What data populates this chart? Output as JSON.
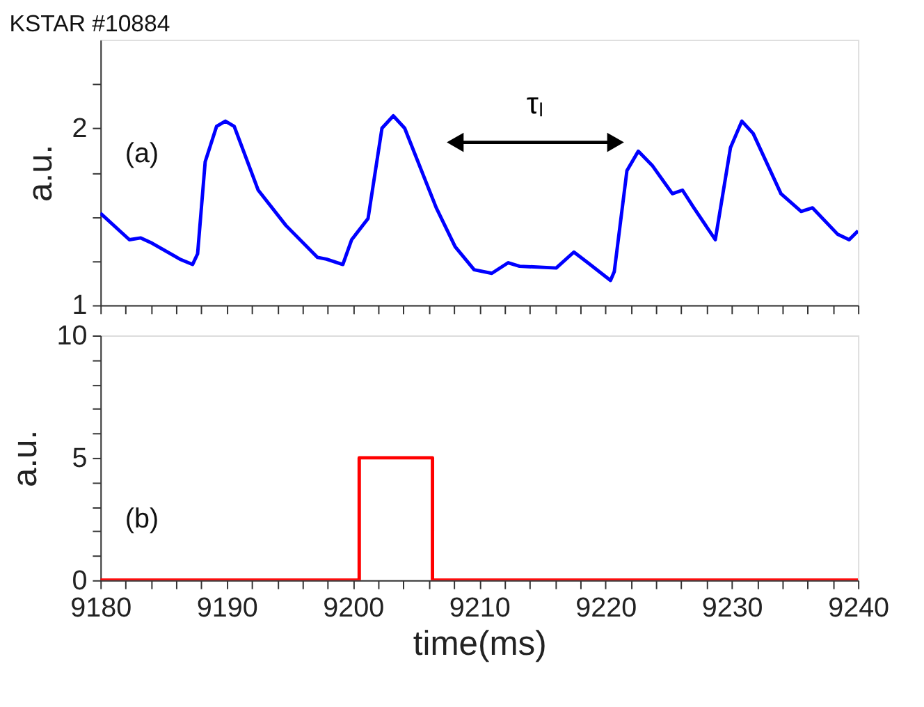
{
  "chart_data": [
    {
      "type": "line",
      "title": "KSTAR #10884",
      "ylabel": "a.u.",
      "xlim": [
        9180,
        9240
      ],
      "xticks": [
        9180,
        {
          "value": 9182,
          "label": null
        },
        {
          "value": 9184,
          "label": null
        },
        {
          "value": 9186,
          "label": null
        },
        {
          "value": 9188,
          "label": null
        },
        9190,
        {
          "value": 9192,
          "label": null
        },
        {
          "value": 9194,
          "label": null
        },
        {
          "value": 9196,
          "label": null
        },
        {
          "value": 9198,
          "label": null
        },
        9200,
        {
          "value": 9202,
          "label": null
        },
        {
          "value": 9204,
          "label": null
        },
        {
          "value": 9206,
          "label": null
        },
        {
          "value": 9208,
          "label": null
        },
        9210,
        {
          "value": 9212,
          "label": null
        },
        {
          "value": 9214,
          "label": null
        },
        {
          "value": 9216,
          "label": null
        },
        {
          "value": 9218,
          "label": null
        },
        9220,
        {
          "value": 9222,
          "label": null
        },
        {
          "value": 9224,
          "label": null
        },
        {
          "value": 9226,
          "label": null
        },
        {
          "value": 9228,
          "label": null
        },
        9230,
        {
          "value": 9232,
          "label": null
        },
        {
          "value": 9234,
          "label": null
        },
        {
          "value": 9236,
          "label": null
        },
        {
          "value": 9238,
          "label": null
        },
        9240
      ],
      "ylim": [
        1,
        2.5
      ],
      "yticks": [
        1,
        {
          "value": 1.25,
          "label": null
        },
        {
          "value": 1.5,
          "label": null
        },
        {
          "value": 1.75,
          "label": null
        },
        2,
        {
          "value": 2.25,
          "label": null
        }
      ],
      "tick_labels": "y",
      "grid": false,
      "series": [
        {
          "color": "#0000ff",
          "x": [
            9180,
            9182.3,
            9183.2,
            9184.1,
            9186.3,
            9187.3,
            9187.7,
            9188.3,
            9189.2,
            9189.9,
            9190.6,
            9192.5,
            9194.7,
            9197.2,
            9197.9,
            9199.2,
            9199.9,
            9201.2,
            9202.3,
            9203.2,
            9204.1,
            9206.6,
            9208.1,
            9209.6,
            9211.0,
            9212.3,
            9213.2,
            9216.1,
            9217.5,
            9218.6,
            9220.4,
            9220.7,
            9221.7,
            9222.6,
            9223.7,
            9225.3,
            9226.1,
            9227.0,
            9228.7,
            9229.9,
            9230.8,
            9231.7,
            9233.9,
            9235.5,
            9236.4,
            9238.4,
            9239.3,
            9240
          ],
          "values": [
            1.52,
            1.37,
            1.38,
            1.35,
            1.26,
            1.23,
            1.29,
            1.81,
            2.01,
            2.04,
            2.01,
            1.65,
            1.45,
            1.27,
            1.26,
            1.23,
            1.37,
            1.49,
            2.0,
            2.07,
            2.0,
            1.55,
            1.33,
            1.2,
            1.18,
            1.24,
            1.22,
            1.21,
            1.3,
            1.24,
            1.14,
            1.19,
            1.76,
            1.87,
            1.79,
            1.63,
            1.65,
            1.55,
            1.37,
            1.89,
            2.04,
            1.97,
            1.63,
            1.53,
            1.55,
            1.4,
            1.37,
            1.42
          ]
        },
        {
          "type": "line",
          "name": "τₗ",
          "color": "#000000",
          "marker": "triangle",
          "x": [
            9208.1,
            9220.8
          ],
          "values": [
            1.92,
            1.92
          ]
        }
      ],
      "annotations": [
        "(a)"
      ]
    },
    {
      "type": "line",
      "xlabel": "time(ms)",
      "ylabel": "a.u.",
      "xlim": [
        9180,
        9240
      ],
      "xticks": [
        9180,
        {
          "value": 9182,
          "label": null
        },
        {
          "value": 9184,
          "label": null
        },
        {
          "value": 9186,
          "label": null
        },
        {
          "value": 9188,
          "label": null
        },
        9190,
        {
          "value": 9192,
          "label": null
        },
        {
          "value": 9194,
          "label": null
        },
        {
          "value": 9196,
          "label": null
        },
        {
          "value": 9198,
          "label": null
        },
        9200,
        {
          "value": 9202,
          "label": null
        },
        {
          "value": 9204,
          "label": null
        },
        {
          "value": 9206,
          "label": null
        },
        {
          "value": 9208,
          "label": null
        },
        9210,
        {
          "value": 9212,
          "label": null
        },
        {
          "value": 9214,
          "label": null
        },
        {
          "value": 9216,
          "label": null
        },
        {
          "value": 9218,
          "label": null
        },
        9220,
        {
          "value": 9222,
          "label": null
        },
        {
          "value": 9224,
          "label": null
        },
        {
          "value": 9226,
          "label": null
        },
        {
          "value": 9228,
          "label": null
        },
        9230,
        {
          "value": 9232,
          "label": null
        },
        {
          "value": 9234,
          "label": null
        },
        {
          "value": 9236,
          "label": null
        },
        {
          "value": 9238,
          "label": null
        },
        9240
      ],
      "ylim": [
        0,
        10
      ],
      "yticks": [
        0,
        {
          "value": 1,
          "label": null
        },
        {
          "value": 2,
          "label": null
        },
        {
          "value": 3,
          "label": null
        },
        {
          "value": 4,
          "label": null
        },
        5,
        {
          "value": 6,
          "label": null
        },
        {
          "value": 7,
          "label": null
        },
        {
          "value": 8,
          "label": null
        },
        {
          "value": 9,
          "label": null
        },
        10
      ],
      "grid": false,
      "series": [
        {
          "color": "#ff0000",
          "x": [
            9180,
            9200.5,
            9200.5,
            9206.3,
            9206.3,
            9240
          ],
          "values": [
            0,
            0,
            5,
            5,
            0,
            0
          ]
        }
      ],
      "annotations": [
        "(b)"
      ]
    }
  ]
}
